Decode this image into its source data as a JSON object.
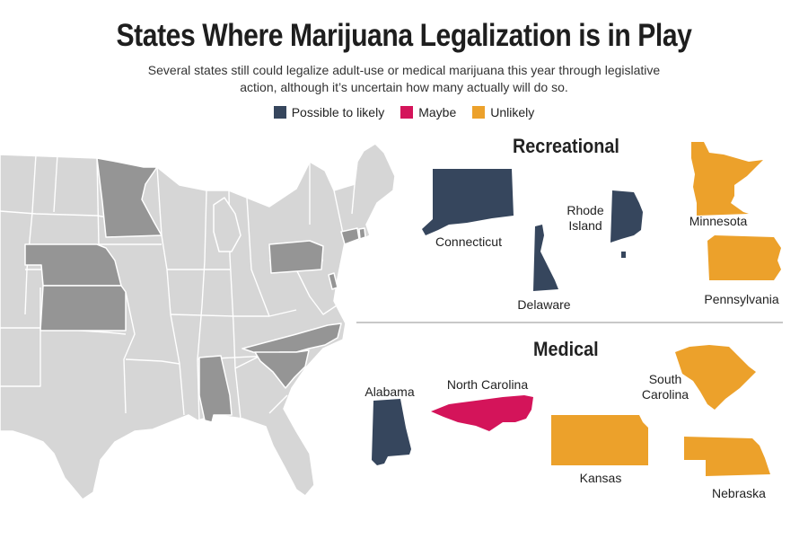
{
  "title": "States Where Marijuana Legalization is in Play",
  "subtitle": "Several states still could legalize adult-use or medical marijuana this year through legislative action, although it’s uncertain how many actually will do so.",
  "legend": [
    {
      "label": "Possible to likely",
      "color": "#36465d"
    },
    {
      "label": "Maybe",
      "color": "#d4145a"
    },
    {
      "label": "Unlikely",
      "color": "#eca12b"
    }
  ],
  "colors": {
    "map_base": "#d6d6d6",
    "map_highlight": "#959595",
    "map_stroke": "#ffffff"
  },
  "sections": {
    "recreational": "Recreational",
    "medical": "Medical"
  },
  "states": {
    "connecticut": {
      "name": "Connecticut",
      "status": "Possible to likely"
    },
    "delaware": {
      "name": "Delaware",
      "status": "Possible to likely"
    },
    "rhode_island_line1": "Rhode",
    "rhode_island_line2": "Island",
    "rhode_island": {
      "status": "Possible to likely"
    },
    "minnesota": {
      "name": "Minnesota",
      "status": "Unlikely"
    },
    "pennsylvania": {
      "name": "Pennsylvania",
      "status": "Unlikely"
    },
    "alabama": {
      "name": "Alabama",
      "status": "Possible to likely"
    },
    "north_carolina": {
      "name": "North Carolina",
      "status": "Maybe"
    },
    "south_carolina_line1": "South",
    "south_carolina_line2": "Carolina",
    "south_carolina": {
      "status": "Unlikely"
    },
    "kansas": {
      "name": "Kansas",
      "status": "Unlikely"
    },
    "nebraska": {
      "name": "Nebraska",
      "status": "Unlikely"
    }
  }
}
